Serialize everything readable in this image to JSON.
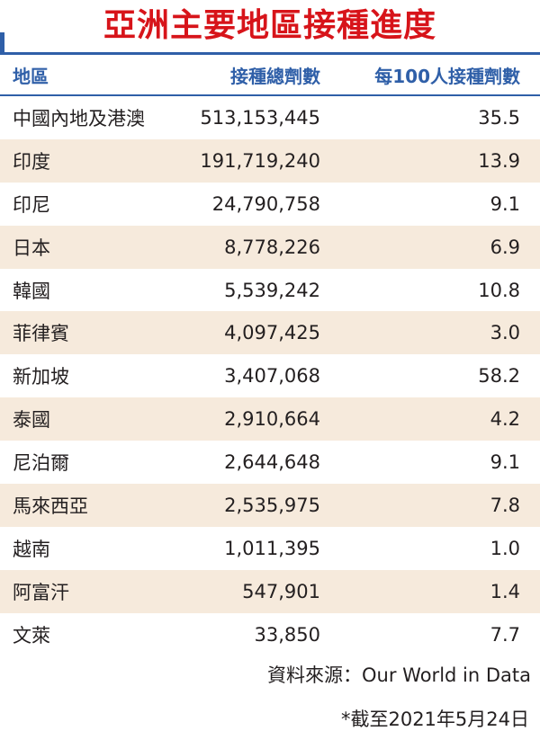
{
  "title": "亞洲主要地區接種進度",
  "headers": {
    "region": "地區",
    "total_doses": "接種總劑數",
    "per_100": "每100人接種劑數"
  },
  "rows": [
    {
      "region": "中國內地及港澳",
      "total_doses": "513,153,445",
      "per_100": "35.5"
    },
    {
      "region": "印度",
      "total_doses": "191,719,240",
      "per_100": "13.9"
    },
    {
      "region": "印尼",
      "total_doses": "24,790,758",
      "per_100": "9.1"
    },
    {
      "region": "日本",
      "total_doses": "8,778,226",
      "per_100": "6.9"
    },
    {
      "region": "韓國",
      "total_doses": "5,539,242",
      "per_100": "10.8"
    },
    {
      "region": "菲律賓",
      "total_doses": "4,097,425",
      "per_100": "3.0"
    },
    {
      "region": "新加坡",
      "total_doses": "3,407,068",
      "per_100": "58.2"
    },
    {
      "region": "泰國",
      "total_doses": "2,910,664",
      "per_100": "4.2"
    },
    {
      "region": "尼泊爾",
      "total_doses": "2,644,648",
      "per_100": "9.1"
    },
    {
      "region": "馬來西亞",
      "total_doses": "2,535,975",
      "per_100": "7.8"
    },
    {
      "region": "越南",
      "total_doses": "1,011,395",
      "per_100": "1.0"
    },
    {
      "region": "阿富汗",
      "total_doses": "547,901",
      "per_100": "1.4"
    },
    {
      "region": "文萊",
      "total_doses": "33,850",
      "per_100": "7.7"
    }
  ],
  "source": "資料來源：Our World in Data",
  "footnote": "*截至2021年5月24日",
  "colors": {
    "title": "#d7141a",
    "accent": "#2f5fa8",
    "row_shade": "#f6eadc",
    "text": "#231f20"
  }
}
